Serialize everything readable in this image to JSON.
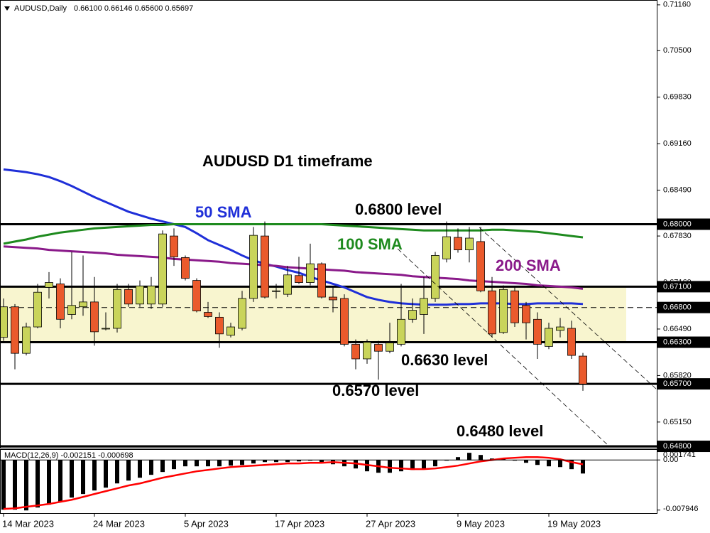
{
  "chart_data": [
    {
      "type": "candlestick",
      "title": "AUDUSD,Daily",
      "subtitle": "0.66100 0.66146 0.65600 0.65697",
      "categories": [
        "14 Mar 2023",
        null,
        null,
        null,
        null,
        null,
        null,
        null,
        "24 Mar 2023",
        null,
        null,
        null,
        null,
        null,
        null,
        null,
        "5 Apr 2023",
        null,
        null,
        null,
        null,
        null,
        null,
        null,
        "17 Apr 2023",
        null,
        null,
        null,
        null,
        null,
        null,
        null,
        "27 Apr 2023",
        null,
        null,
        null,
        null,
        null,
        null,
        null,
        "9 May 2023",
        null,
        null,
        null,
        null,
        null,
        null,
        null,
        "19 May 2023",
        null,
        null,
        null
      ],
      "open": [
        0.6637,
        0.6681,
        0.6614,
        0.6652,
        0.6709,
        0.6714,
        0.667,
        0.6681,
        0.6688,
        0.6649,
        0.665,
        0.6706,
        0.6685,
        0.6685,
        0.6685,
        0.6783,
        0.6752,
        0.6719,
        0.6673,
        0.6666,
        0.664,
        0.665,
        0.6693,
        0.6783,
        0.6704,
        0.6699,
        0.6726,
        0.6716,
        0.6743,
        0.6695,
        0.6693,
        0.6627,
        0.6606,
        0.6627,
        0.6617,
        0.6627,
        0.6663,
        0.667,
        0.6693,
        0.675,
        0.6781,
        0.6763,
        0.6775,
        0.6704,
        0.6644,
        0.6704,
        0.6683,
        0.6663,
        0.6624,
        0.6647,
        0.665,
        0.661
      ],
      "high": [
        0.6693,
        0.6685,
        0.6658,
        0.6714,
        0.6731,
        0.6722,
        0.676,
        0.6755,
        0.6724,
        0.6673,
        0.6714,
        0.6714,
        0.6719,
        0.6724,
        0.6791,
        0.6794,
        0.6755,
        0.6722,
        0.6688,
        0.6673,
        0.6658,
        0.6704,
        0.6796,
        0.6804,
        0.6714,
        0.674,
        0.6753,
        0.6772,
        0.6745,
        0.6709,
        0.6699,
        0.6634,
        0.6634,
        0.6632,
        0.6658,
        0.6714,
        0.6693,
        0.6724,
        0.676,
        0.6804,
        0.6794,
        0.6796,
        0.6796,
        0.6724,
        0.6712,
        0.6709,
        0.6688,
        0.6673,
        0.6658,
        0.6665,
        0.6661,
        0.66146
      ],
      "low": [
        0.6632,
        0.6591,
        0.6611,
        0.665,
        0.6693,
        0.665,
        0.6663,
        0.6668,
        0.6625,
        0.6647,
        0.6644,
        0.6681,
        0.6681,
        0.6678,
        0.6681,
        0.674,
        0.6719,
        0.6673,
        0.6665,
        0.6622,
        0.6637,
        0.6647,
        0.6688,
        0.6693,
        0.6693,
        0.6695,
        0.6714,
        0.6712,
        0.6693,
        0.6673,
        0.6624,
        0.6591,
        0.6599,
        0.6576,
        0.6614,
        0.6624,
        0.6658,
        0.6642,
        0.6688,
        0.6745,
        0.6759,
        0.6745,
        0.6702,
        0.6637,
        0.6642,
        0.6652,
        0.6634,
        0.6606,
        0.662,
        0.6637,
        0.6606,
        0.656
      ],
      "close": [
        0.6681,
        0.6614,
        0.6652,
        0.6702,
        0.6716,
        0.6663,
        0.6683,
        0.6688,
        0.6645,
        0.665,
        0.6706,
        0.6685,
        0.6711,
        0.6711,
        0.6786,
        0.6753,
        0.6722,
        0.6675,
        0.6667,
        0.6642,
        0.6652,
        0.6693,
        0.6784,
        0.6695,
        0.6704,
        0.6727,
        0.6716,
        0.6743,
        0.6695,
        0.6691,
        0.6627,
        0.6606,
        0.663,
        0.6617,
        0.6629,
        0.6663,
        0.6676,
        0.6693,
        0.6755,
        0.6782,
        0.6763,
        0.678,
        0.6704,
        0.6642,
        0.6706,
        0.6658,
        0.6658,
        0.6627,
        0.665,
        0.6652,
        0.6611,
        0.65697
      ],
      "up_color": "#c9d45a",
      "down_color": "#ea5a2c",
      "series": [
        {
          "name": "50 SMA",
          "color": "#1f2fd8",
          "values": [
            0.6879,
            0.6877,
            0.6875,
            0.6872,
            0.6868,
            0.6862,
            0.6855,
            0.6847,
            0.6839,
            0.6832,
            0.6825,
            0.6818,
            0.6813,
            0.6808,
            0.6804,
            0.68,
            0.6796,
            0.6787,
            0.6777,
            0.677,
            0.6763,
            0.6755,
            0.6748,
            0.6743,
            0.6739,
            0.6734,
            0.673,
            0.6724,
            0.6719,
            0.6714,
            0.6709,
            0.6702,
            0.6695,
            0.6691,
            0.6688,
            0.6686,
            0.6685,
            0.6684,
            0.6684,
            0.6684,
            0.6685,
            0.6685,
            0.6686,
            0.6686,
            0.6686,
            0.6685,
            0.6685,
            0.6686,
            0.6686,
            0.6686,
            0.6686,
            0.6685
          ]
        },
        {
          "name": "100 SMA",
          "color": "#1e8a1e",
          "values": [
            0.6772,
            0.6775,
            0.6778,
            0.6782,
            0.6785,
            0.6788,
            0.679,
            0.6792,
            0.6794,
            0.6795,
            0.6796,
            0.6797,
            0.6798,
            0.6799,
            0.6799,
            0.68,
            0.68,
            0.68,
            0.68,
            0.68,
            0.68,
            0.68,
            0.68,
            0.68,
            0.68,
            0.68,
            0.68,
            0.68,
            0.68,
            0.6799,
            0.6798,
            0.6797,
            0.6796,
            0.6795,
            0.6794,
            0.6793,
            0.6792,
            0.6791,
            0.6791,
            0.6791,
            0.6791,
            0.6791,
            0.6791,
            0.6792,
            0.6792,
            0.6791,
            0.679,
            0.6789,
            0.6787,
            0.6785,
            0.6783,
            0.6781
          ]
        },
        {
          "name": "200 SMA",
          "color": "#8a1a8a",
          "values": [
            0.6768,
            0.6767,
            0.6766,
            0.6765,
            0.6763,
            0.6762,
            0.6761,
            0.676,
            0.6759,
            0.6758,
            0.6756,
            0.6755,
            0.6754,
            0.6753,
            0.6752,
            0.675,
            0.6749,
            0.6748,
            0.6747,
            0.6746,
            0.6744,
            0.6743,
            0.6742,
            0.6741,
            0.674,
            0.6738,
            0.6737,
            0.6736,
            0.6735,
            0.6734,
            0.6733,
            0.6731,
            0.673,
            0.6729,
            0.6728,
            0.6727,
            0.6725,
            0.6724,
            0.6723,
            0.6722,
            0.6721,
            0.6719,
            0.6718,
            0.6717,
            0.6716,
            0.6715,
            0.6714,
            0.6712,
            0.6711,
            0.671,
            0.6709,
            0.6707
          ]
        }
      ],
      "ylim": [
        0.6478,
        0.7123
      ],
      "yticks": [
        {
          "value": 0.7116,
          "label": "0.71160"
        },
        {
          "value": 0.705,
          "label": "0.70500"
        },
        {
          "value": 0.6983,
          "label": "0.69830"
        },
        {
          "value": 0.6916,
          "label": "0.69160"
        },
        {
          "value": 0.6849,
          "label": "0.68490"
        },
        {
          "value": 0.6783,
          "label": "0.67830"
        },
        {
          "value": 0.6716,
          "label": "0.67160"
        },
        {
          "value": 0.6649,
          "label": "0.66490"
        },
        {
          "value": 0.6582,
          "label": "0.65820"
        },
        {
          "value": 0.6515,
          "label": "0.65150"
        }
      ],
      "levels": [
        {
          "value": 0.68,
          "label": "0.68000"
        },
        {
          "value": 0.671,
          "label": "0.67100"
        },
        {
          "value": 0.668,
          "label": "0.66800",
          "style": "dashed"
        },
        {
          "value": 0.663,
          "label": "0.66300"
        },
        {
          "value": 0.657,
          "label": "0.65700"
        },
        {
          "value": 0.648,
          "label": "0.64800"
        }
      ],
      "zone": [
        0.663,
        0.671
      ],
      "zone_color": "#f8f5cf",
      "annotations": [
        "AUDUSD D1 timeframe",
        "0.6800 level",
        "0.6630 level",
        "0.6570 level",
        "0.6480 level"
      ]
    },
    {
      "type": "macd",
      "title": "MACD(12,26,9) -0.002151 -0.000698",
      "series": [
        {
          "type": "bar",
          "color": "#000000",
          "values": [
            -0.00788,
            -0.00788,
            -0.008,
            -0.00754,
            -0.00709,
            -0.00664,
            -0.00597,
            -0.0054,
            -0.00484,
            -0.00439,
            -0.00372,
            -0.00327,
            -0.00282,
            -0.00236,
            -0.00191,
            -0.00146,
            -0.00101,
            -0.00101,
            -0.00101,
            -0.00101,
            -0.0009,
            -0.00079,
            -0.00056,
            -0.00034,
            -0.00034,
            -0.00034,
            -0.00023,
            -0.00011,
            -0.00034,
            -0.00068,
            -0.00101,
            -0.00135,
            -0.0018,
            -0.00203,
            -0.00203,
            -0.0018,
            -0.00158,
            -0.00146,
            -0.00101,
            -0.00011,
            0.00045,
            0.00113,
            0.00079,
            0.00023,
            0.00023,
            -0.00011,
            -0.00045,
            -0.00079,
            -0.00101,
            -0.00113,
            -0.00146,
            -0.002151
          ]
        },
        {
          "type": "line",
          "color": "#ff0000",
          "values": [
            -0.00777,
            -0.00766,
            -0.00743,
            -0.00721,
            -0.00698,
            -0.00664,
            -0.00631,
            -0.00586,
            -0.0054,
            -0.00495,
            -0.0045,
            -0.00405,
            -0.00372,
            -0.00327,
            -0.00282,
            -0.00248,
            -0.00214,
            -0.0018,
            -0.00158,
            -0.00135,
            -0.00113,
            -0.00101,
            -0.0009,
            -0.00079,
            -0.00068,
            -0.00056,
            -0.00056,
            -0.00045,
            -0.00045,
            -0.00034,
            -0.00045,
            -0.00056,
            -0.00079,
            -0.00101,
            -0.00124,
            -0.00135,
            -0.00146,
            -0.00146,
            -0.00135,
            -0.00113,
            -0.0009,
            -0.00056,
            -0.00023,
            0,
            0.00023,
            0.00034,
            0.00045,
            0.00045,
            0.00034,
            0.00011,
            -0.00034,
            -0.000698
          ]
        }
      ],
      "ylim": [
        -0.0082,
        0.0016
      ],
      "yticks": [
        0.001741,
        {
          "value": 0,
          "label": "0.00"
        },
        -0.007946
      ]
    }
  ]
}
